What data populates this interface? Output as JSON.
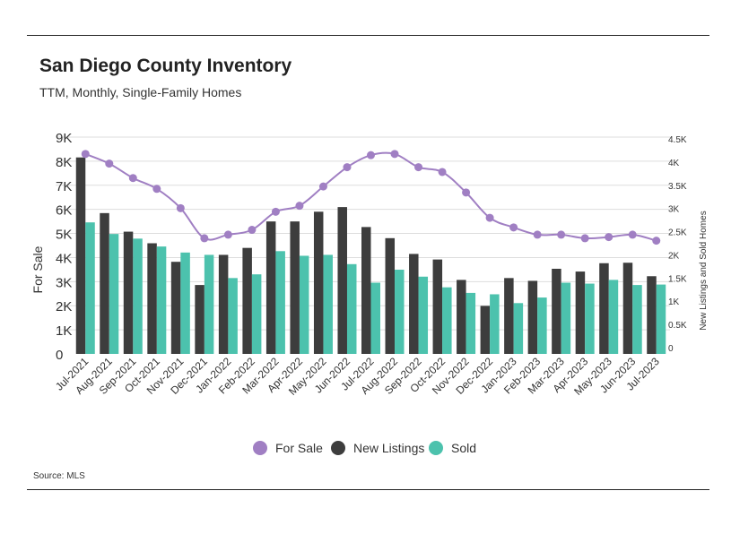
{
  "header": {
    "title": "San Diego County Inventory",
    "subtitle": "TTM, Monthly, Single-Family Homes"
  },
  "footer": {
    "source": "Source: MLS"
  },
  "colors": {
    "for_sale": "#A07FC3",
    "new_listings": "#3D3D3D",
    "sold": "#4CC2AD",
    "grid": "#DDDDDD"
  },
  "chart_data": {
    "type": "bar",
    "title": "San Diego County Inventory",
    "subtitle": "TTM, Monthly, Single-Family Homes",
    "categories": [
      "Jul-2021",
      "Aug-2021",
      "Sep-2021",
      "Oct-2021",
      "Nov-2021",
      "Dec-2021",
      "Jan-2022",
      "Feb-2022",
      "Mar-2022",
      "Apr-2022",
      "May-2022",
      "Jun-2022",
      "Jul-2022",
      "Aug-2022",
      "Sep-2022",
      "Oct-2022",
      "Nov-2022",
      "Dec-2022",
      "Jan-2023",
      "Feb-2023",
      "Mar-2023",
      "Apr-2023",
      "May-2023",
      "Jun-2023",
      "Jul-2023"
    ],
    "ylabel": "For Sale",
    "y2label": "New Listings and Sold Homes",
    "ylim": [
      0,
      9000
    ],
    "y2lim": [
      0,
      4500
    ],
    "yticks": [
      {
        "value": 0,
        "label": "0"
      },
      {
        "value": 1000,
        "label": "1K"
      },
      {
        "value": 2000,
        "label": "2K"
      },
      {
        "value": 3000,
        "label": "3K"
      },
      {
        "value": 4000,
        "label": "4K"
      },
      {
        "value": 5000,
        "label": "5K"
      },
      {
        "value": 6000,
        "label": "6K"
      },
      {
        "value": 7000,
        "label": "7K"
      },
      {
        "value": 8000,
        "label": "8K"
      },
      {
        "value": 9000,
        "label": "9K"
      }
    ],
    "y2ticks": [
      {
        "value": 0,
        "label": "0"
      },
      {
        "value": 500,
        "label": "0.5K"
      },
      {
        "value": 1000,
        "label": "1K"
      },
      {
        "value": 1500,
        "label": "1.5K"
      },
      {
        "value": 2000,
        "label": "2K"
      },
      {
        "value": 2500,
        "label": "2.5K"
      },
      {
        "value": 3000,
        "label": "3K"
      },
      {
        "value": 3500,
        "label": "3.5K"
      },
      {
        "value": 4000,
        "label": "4K"
      },
      {
        "value": 4500,
        "label": "4.5K"
      }
    ],
    "grid": true,
    "legend_position": "bottom-center",
    "series": [
      {
        "name": "For Sale",
        "type": "line",
        "axis": "left",
        "values": [
          8300,
          7900,
          7300,
          6850,
          6050,
          4800,
          4950,
          5150,
          5900,
          6150,
          6950,
          7750,
          8250,
          8300,
          7750,
          7550,
          6700,
          5650,
          5250,
          4950,
          4950,
          4800,
          4850,
          4950,
          4700
        ]
      },
      {
        "name": "New Listings",
        "type": "bar",
        "axis": "right",
        "values": [
          4100,
          2900,
          2500,
          2250,
          1850,
          1350,
          2000,
          2150,
          2720,
          2720,
          2930,
          3030,
          2600,
          2360,
          2020,
          1900,
          1460,
          900,
          1500,
          1440,
          1700,
          1640,
          1820,
          1830,
          1540
        ]
      },
      {
        "name": "Sold",
        "type": "bar",
        "axis": "right",
        "values": [
          2700,
          2450,
          2350,
          2180,
          2050,
          2000,
          1500,
          1580,
          2080,
          1980,
          2000,
          1800,
          1400,
          1680,
          1530,
          1300,
          1180,
          1150,
          960,
          1080,
          1400,
          1380,
          1460,
          1350,
          1360
        ]
      }
    ]
  }
}
